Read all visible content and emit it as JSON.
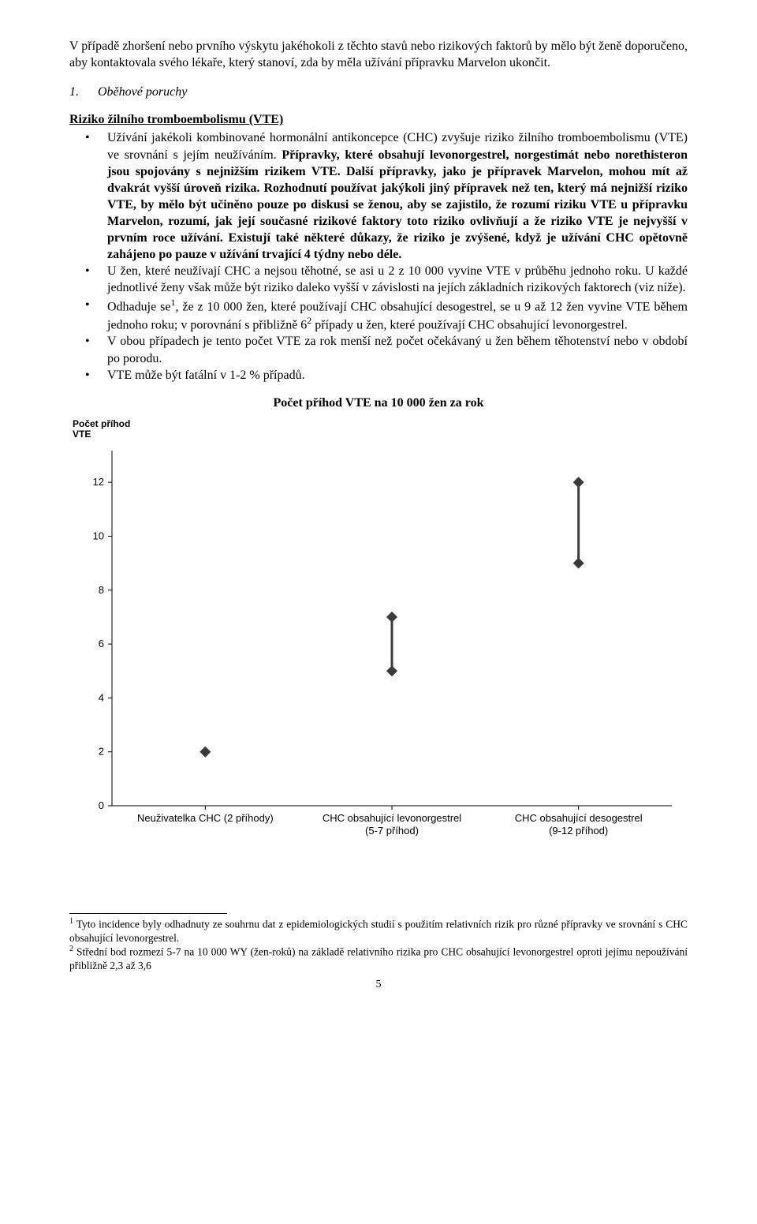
{
  "intro_para": "V případě zhoršení nebo prvního výskytu jakéhokoli z těchto stavů nebo rizikových faktorů by mělo být ženě doporučeno, aby kontaktovala svého lékaře, který stanoví, zda by měla užívání přípravku Marvelon ukončit.",
  "section_number": "1.",
  "section_title": "Oběhové poruchy",
  "subheading": "Riziko žilního tromboembolismu (VTE)",
  "bullet1_lead": "Užívání jakékoli kombinované hormonální antikoncepce (CHC) zvyšuje riziko žilního tromboembolismu (VTE) ve srovnání s jejím neužíváním. ",
  "bullet1_bold": "Přípravky, které obsahují levonorgestrel, norgestimát nebo norethisteron jsou spojovány s nejnižším rizikem VTE. Další přípravky, jako je přípravek Marvelon, mohou mít až dvakrát vyšší úroveň rizika. Rozhodnutí používat jakýkoli jiný přípravek než ten, který má nejnižší riziko VTE, by mělo být učiněno pouze po diskusi se ženou, aby se zajistilo, že rozumí riziku VTE u přípravku Marvelon, rozumí, jak její současné rizikové faktory toto riziko ovlivňují a že riziko VTE je nejvyšší v prvním roce užívání. Existují také některé důkazy, že riziko je zvýšené, když je užívání CHC opětovně zahájeno po pauze v užívání trvající 4 týdny nebo déle.",
  "bullet2": "U žen, které neužívají CHC a nejsou těhotné, se asi u 2 z 10 000 vyvine VTE v průběhu jednoho roku. U každé jednotlivé ženy však může být riziko daleko vyšší v závislosti na jejích základních rizikových faktorech (viz níže).",
  "bullet3_a": "Odhaduje se",
  "bullet3_sup1": "1",
  "bullet3_b": ", že z 10 000 žen, které používají CHC obsahující desogestrel, se u 9 až 12 žen vyvine VTE během jednoho roku; v porovnání s přibližně 6",
  "bullet3_sup2": "2",
  "bullet3_c": " případy u žen, které používají CHC obsahující levonorgestrel.",
  "bullet4": "V obou případech je tento počet VTE za rok menší než počet očekávaný u žen během těhotenství nebo v období po porodu.",
  "bullet5": "VTE může být fatální v 1-2 % případů.",
  "chart": {
    "title": "Počet příhod VTE na 10 000 žen za rok",
    "y_axis_label_line1": "Počet příhod",
    "y_axis_label_line2": "VTE",
    "type": "range-dot",
    "ylim": [
      0,
      13
    ],
    "yticks": [
      0,
      2,
      4,
      6,
      8,
      10,
      12
    ],
    "background_color": "#ffffff",
    "axis_color": "#000000",
    "marker_color": "#3b3b3b",
    "marker_size": 7,
    "line_width": 3,
    "categories": [
      {
        "label_line1": "Neuživatelka  CHC (2 příhody)",
        "label_line2": "",
        "low": 2,
        "high": 2
      },
      {
        "label_line1": "CHC obsahující levonorgestrel",
        "label_line2": "(5-7 příhod)",
        "low": 5,
        "high": 7
      },
      {
        "label_line1": "CHC obsahující desogestrel",
        "label_line2": "(9-12 příhod)",
        "low": 9,
        "high": 12
      }
    ],
    "tick_fontsize": 13,
    "label_fontsize": 13
  },
  "footnote1_sup": "1",
  "footnote1_text": " Tyto incidence byly odhadnuty ze souhrnu dat z epidemiologických studií s použitím relativních rizik pro různé přípravky ve srovnání s CHC obsahující levonorgestrel.",
  "footnote2_sup": "2",
  "footnote2_text": " Střední bod rozmezí 5-7 na 10 000 WY (žen-roků) na základě relativního rizika pro CHC obsahující levonorgestrel oproti jejímu nepoužívání přibližně 2,3 až 3,6",
  "page_number": "5"
}
